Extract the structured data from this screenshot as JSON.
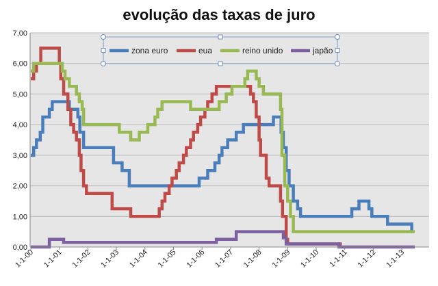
{
  "chart_data": {
    "type": "line",
    "title": "evolução das taxas de juro",
    "xlabel": "",
    "ylabel": "",
    "ylim": [
      0,
      7
    ],
    "xlim": [
      2000,
      2013.7
    ],
    "y_ticks": [
      "0,00",
      "1,00",
      "2,00",
      "3,00",
      "4,00",
      "5,00",
      "6,00",
      "7,00"
    ],
    "x_ticks": [
      "1-1-00",
      "1-1-01",
      "1-1-02",
      "1-1-03",
      "1-1-04",
      "1-1-05",
      "1-1-06",
      "1-1-07",
      "1-1-08",
      "1-1-09",
      "1-1-10",
      "1-1-11",
      "1-1-12",
      "1-1-13"
    ],
    "x_tick_values": [
      2000,
      2001,
      2002,
      2003,
      2004,
      2005,
      2006,
      2007,
      2008,
      2009,
      2010,
      2011,
      2012,
      2013
    ],
    "grid": true,
    "legend_position": "top",
    "plot_background": "#e6e6e6",
    "series": [
      {
        "name": "zona euro",
        "color": "#4a7ebb",
        "points": [
          [
            2000.0,
            3.0
          ],
          [
            2000.1,
            3.25
          ],
          [
            2000.2,
            3.5
          ],
          [
            2000.33,
            3.75
          ],
          [
            2000.42,
            4.25
          ],
          [
            2000.65,
            4.5
          ],
          [
            2000.75,
            4.75
          ],
          [
            2001.35,
            4.5
          ],
          [
            2001.65,
            4.25
          ],
          [
            2001.72,
            3.75
          ],
          [
            2001.85,
            3.25
          ],
          [
            2002.9,
            2.75
          ],
          [
            2003.2,
            2.5
          ],
          [
            2003.45,
            2.0
          ],
          [
            2005.9,
            2.25
          ],
          [
            2006.2,
            2.5
          ],
          [
            2006.45,
            2.75
          ],
          [
            2006.6,
            3.0
          ],
          [
            2006.7,
            3.25
          ],
          [
            2006.9,
            3.5
          ],
          [
            2007.2,
            3.75
          ],
          [
            2007.45,
            4.0
          ],
          [
            2008.5,
            4.25
          ],
          [
            2008.77,
            3.75
          ],
          [
            2008.85,
            3.25
          ],
          [
            2008.95,
            2.5
          ],
          [
            2009.05,
            2.0
          ],
          [
            2009.2,
            1.5
          ],
          [
            2009.35,
            1.25
          ],
          [
            2009.45,
            1.0
          ],
          [
            2011.25,
            1.25
          ],
          [
            2011.5,
            1.5
          ],
          [
            2011.85,
            1.25
          ],
          [
            2011.95,
            1.0
          ],
          [
            2012.5,
            0.75
          ],
          [
            2013.35,
            0.5
          ]
        ]
      },
      {
        "name": "eua",
        "color": "#be4b48",
        "points": [
          [
            2000.0,
            5.5
          ],
          [
            2000.1,
            5.75
          ],
          [
            2000.2,
            6.0
          ],
          [
            2000.35,
            6.5
          ],
          [
            2001.0,
            6.0
          ],
          [
            2001.05,
            5.5
          ],
          [
            2001.15,
            5.0
          ],
          [
            2001.3,
            4.5
          ],
          [
            2001.4,
            4.0
          ],
          [
            2001.5,
            3.75
          ],
          [
            2001.6,
            3.5
          ],
          [
            2001.7,
            3.0
          ],
          [
            2001.76,
            2.5
          ],
          [
            2001.85,
            2.0
          ],
          [
            2001.95,
            1.75
          ],
          [
            2002.85,
            1.25
          ],
          [
            2003.5,
            1.0
          ],
          [
            2004.5,
            1.25
          ],
          [
            2004.6,
            1.5
          ],
          [
            2004.7,
            1.75
          ],
          [
            2004.85,
            2.0
          ],
          [
            2004.95,
            2.25
          ],
          [
            2005.1,
            2.5
          ],
          [
            2005.2,
            2.75
          ],
          [
            2005.35,
            3.0
          ],
          [
            2005.45,
            3.25
          ],
          [
            2005.6,
            3.5
          ],
          [
            2005.7,
            3.75
          ],
          [
            2005.85,
            4.0
          ],
          [
            2005.95,
            4.25
          ],
          [
            2006.1,
            4.5
          ],
          [
            2006.2,
            4.75
          ],
          [
            2006.35,
            5.0
          ],
          [
            2006.5,
            5.25
          ],
          [
            2007.7,
            5.0
          ],
          [
            2007.8,
            4.75
          ],
          [
            2007.9,
            4.25
          ],
          [
            2008.0,
            3.5
          ],
          [
            2008.05,
            3.0
          ],
          [
            2008.25,
            2.25
          ],
          [
            2008.35,
            2.0
          ],
          [
            2008.75,
            1.5
          ],
          [
            2008.82,
            1.0
          ],
          [
            2008.95,
            0.25
          ],
          [
            2009.0,
            0.1
          ],
          [
            2010.9,
            0.1
          ]
        ]
      },
      {
        "name": "reino unido",
        "color": "#98b954",
        "points": [
          [
            2000.0,
            5.75
          ],
          [
            2000.1,
            6.0
          ],
          [
            2001.1,
            5.75
          ],
          [
            2001.2,
            5.5
          ],
          [
            2001.35,
            5.25
          ],
          [
            2001.6,
            5.0
          ],
          [
            2001.7,
            4.75
          ],
          [
            2001.8,
            4.5
          ],
          [
            2001.85,
            4.0
          ],
          [
            2003.1,
            3.75
          ],
          [
            2003.5,
            3.5
          ],
          [
            2003.8,
            3.75
          ],
          [
            2004.1,
            4.0
          ],
          [
            2004.35,
            4.25
          ],
          [
            2004.45,
            4.5
          ],
          [
            2004.6,
            4.75
          ],
          [
            2005.6,
            4.5
          ],
          [
            2006.6,
            4.75
          ],
          [
            2006.85,
            5.0
          ],
          [
            2007.05,
            5.25
          ],
          [
            2007.5,
            5.5
          ],
          [
            2007.6,
            5.75
          ],
          [
            2007.9,
            5.5
          ],
          [
            2008.0,
            5.25
          ],
          [
            2008.15,
            5.0
          ],
          [
            2008.75,
            4.5
          ],
          [
            2008.8,
            3.0
          ],
          [
            2008.9,
            2.0
          ],
          [
            2009.0,
            1.5
          ],
          [
            2009.1,
            1.0
          ],
          [
            2009.2,
            0.5
          ],
          [
            2013.45,
            0.5
          ]
        ]
      },
      {
        "name": "japão",
        "color": "#7d60a0",
        "points": [
          [
            2000.0,
            0.0
          ],
          [
            2000.65,
            0.25
          ],
          [
            2001.15,
            0.15
          ],
          [
            2006.5,
            0.25
          ],
          [
            2007.2,
            0.5
          ],
          [
            2008.85,
            0.3
          ],
          [
            2008.95,
            0.1
          ],
          [
            2009.2,
            0.1
          ],
          [
            2010.8,
            0.0
          ],
          [
            2013.45,
            0.0
          ]
        ]
      }
    ]
  }
}
